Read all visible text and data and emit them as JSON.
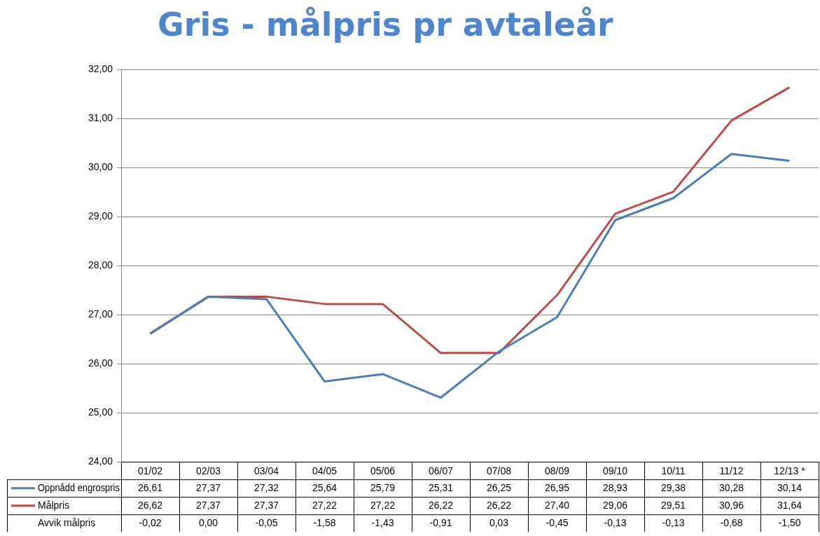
{
  "chart_data": {
    "type": "line",
    "title": "Gris - målpris pr avtaleår",
    "categories": [
      "01/02",
      "02/03",
      "03/04",
      "04/05",
      "05/06",
      "06/07",
      "07/08",
      "08/09",
      "09/10",
      "10/11",
      "11/12",
      "12/13 *"
    ],
    "series": [
      {
        "name": "Oppnådd engrospris",
        "color": "#4a7ebb",
        "values": [
          26.61,
          27.37,
          27.32,
          25.64,
          25.79,
          25.31,
          26.25,
          26.95,
          28.93,
          29.38,
          30.28,
          30.14
        ],
        "value_labels": [
          "26,61",
          "27,37",
          "27,32",
          "25,64",
          "25,79",
          "25,31",
          "26,25",
          "26,95",
          "28,93",
          "29,38",
          "30,28",
          "30,14"
        ]
      },
      {
        "name": "Målpris",
        "color": "#be4b48",
        "values": [
          26.62,
          27.37,
          27.37,
          27.22,
          27.22,
          26.22,
          26.22,
          27.4,
          29.06,
          29.51,
          30.96,
          31.64
        ],
        "value_labels": [
          "26,62",
          "27,37",
          "27,37",
          "27,22",
          "27,22",
          "26,22",
          "26,22",
          "27,40",
          "29,06",
          "29,51",
          "30,96",
          "31,64"
        ]
      }
    ],
    "annotations": [
      "Avvik målpris",
      "-0,02",
      "0,00",
      "-0,05",
      "-1,58",
      "-1,43",
      "-0,91",
      "0,03",
      "-0,45",
      "-0,13",
      "-0,13",
      "-0,68",
      "-1,50"
    ],
    "ylim": [
      24,
      32
    ],
    "yticks": [
      {
        "value": 24,
        "label": "24,00"
      },
      {
        "value": 25,
        "label": "25,00"
      },
      {
        "value": 26,
        "label": "26,00"
      },
      {
        "value": 27,
        "label": "27,00"
      },
      {
        "value": 28,
        "label": "28,00"
      },
      {
        "value": 29,
        "label": "29,00"
      },
      {
        "value": 30,
        "label": "30,00"
      },
      {
        "value": 31,
        "label": "31,00"
      },
      {
        "value": 32,
        "label": "32,00"
      }
    ],
    "grid": "y",
    "legend": "bottom left",
    "marker": "none",
    "data_labels": true
  }
}
